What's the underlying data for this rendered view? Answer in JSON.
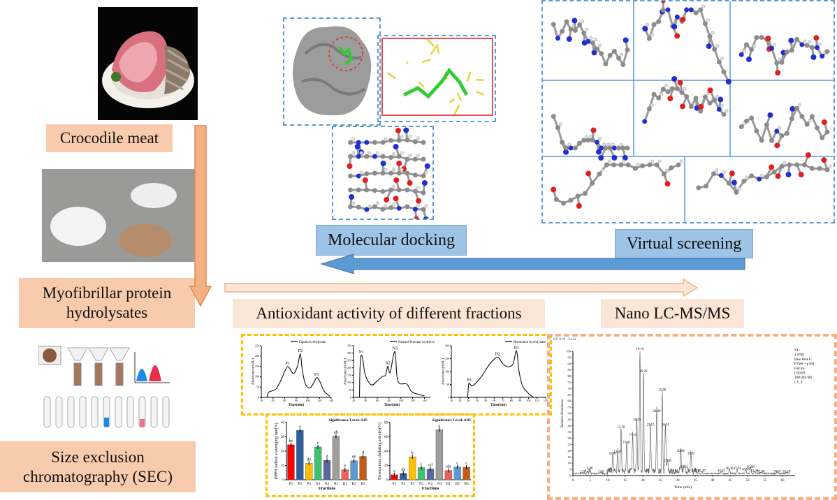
{
  "labels": {
    "crocodile_meat": "Crocodile meat",
    "myofibrillar": "Myofibrillar protein hydrolysates",
    "sec": "Size exclusion chromatography (SEC)",
    "molecular_docking": "Molecular docking",
    "virtual_screening": "Virtual screening",
    "antioxidant": "Antioxidant activity of different fractions",
    "nano_lc": "Nano LC-MS/MS"
  },
  "colors": {
    "label_bg": "#f8cbad",
    "blue_label_bg": "#9dc3e6",
    "arrow_blue": "#5b9bd5",
    "arrow_orange": "#f4b183",
    "chart_frame_yellow": "#ffc000",
    "chromatogram_frame": "#f4b183"
  },
  "chart_data": [
    {
      "type": "line",
      "legend": "Papain hydrolysate",
      "xlabel": "Time(min)",
      "ylabel": "Absorbance(mAU)",
      "xlim": [
        20,
        140
      ],
      "ylim": [
        0,
        250
      ],
      "xticks": [
        20,
        40,
        60,
        80,
        100,
        120,
        140
      ],
      "yticks": [
        0,
        50,
        100,
        150,
        200,
        250
      ],
      "points": [
        [
          30,
          0
        ],
        [
          33,
          25
        ],
        [
          45,
          40
        ],
        [
          55,
          90
        ],
        [
          65,
          148
        ],
        [
          75,
          115
        ],
        [
          82,
          150
        ],
        [
          87,
          210
        ],
        [
          90,
          140
        ],
        [
          95,
          70
        ],
        [
          102,
          45
        ],
        [
          108,
          60
        ],
        [
          115,
          95
        ],
        [
          120,
          80
        ],
        [
          128,
          30
        ],
        [
          138,
          5
        ]
      ],
      "peaks": [
        {
          "label": "P1",
          "x": 65,
          "y": 148
        },
        {
          "label": "P2",
          "x": 87,
          "y": 210
        },
        {
          "label": "P3",
          "x": 115,
          "y": 95
        }
      ]
    },
    {
      "type": "line",
      "legend": "Neutral Protease hydrolysate",
      "xlabel": "Time(min)",
      "ylabel": "Absorbance(mAU)",
      "xlim": [
        20,
        150
      ],
      "ylim": [
        0,
        350
      ],
      "xticks": [
        20,
        40,
        60,
        80,
        100,
        120,
        140
      ],
      "yticks": [
        0,
        50,
        100,
        150,
        200,
        250,
        300,
        350
      ],
      "points": [
        [
          30,
          0
        ],
        [
          31,
          200
        ],
        [
          33,
          285
        ],
        [
          36,
          250
        ],
        [
          40,
          150
        ],
        [
          50,
          85
        ],
        [
          60,
          110
        ],
        [
          68,
          140
        ],
        [
          74,
          150
        ],
        [
          78,
          210
        ],
        [
          82,
          170
        ],
        [
          90,
          310
        ],
        [
          95,
          110
        ],
        [
          110,
          90
        ],
        [
          118,
          40
        ],
        [
          130,
          20
        ],
        [
          140,
          10
        ]
      ],
      "peaks": [
        {
          "label": "N1",
          "x": 33,
          "y": 285
        },
        {
          "label": "N2",
          "x": 78,
          "y": 210
        },
        {
          "label": "N3",
          "x": 90,
          "y": 310
        }
      ]
    },
    {
      "type": "line",
      "legend": "Bromelain hydrolysate",
      "xlabel": "Time(min)",
      "ylabel": "Absorbance(mAU)",
      "xlim": [
        10,
        120
      ],
      "ylim": [
        0,
        200
      ],
      "xticks": [
        10,
        20,
        30,
        40,
        50,
        60,
        70,
        80,
        90,
        100,
        110,
        120
      ],
      "yticks": [
        0,
        50,
        100,
        150,
        200
      ],
      "points": [
        [
          29,
          0
        ],
        [
          30,
          45
        ],
        [
          31,
          55
        ],
        [
          35,
          45
        ],
        [
          45,
          80
        ],
        [
          55,
          130
        ],
        [
          64,
          155
        ],
        [
          70,
          130
        ],
        [
          76,
          118
        ],
        [
          82,
          130
        ],
        [
          86,
          180
        ],
        [
          89,
          100
        ],
        [
          93,
          45
        ],
        [
          100,
          15
        ],
        [
          106,
          0
        ]
      ],
      "peaks": [
        {
          "label": "B1",
          "x": 31,
          "y": 55
        },
        {
          "label": "B2",
          "x": 64,
          "y": 155
        },
        {
          "label": "B3",
          "x": 86,
          "y": 180
        }
      ]
    },
    {
      "type": "bar",
      "title": "Significance Level: 0.05",
      "xlabel": "Fractions",
      "ylabel": "DPPH radical scavenging rate(%)",
      "ylim": [
        0,
        40
      ],
      "yticks": [
        0,
        10,
        20,
        30,
        40
      ],
      "categories": [
        "P1",
        "P2",
        "P3",
        "N1",
        "N2",
        "N3",
        "B1",
        "B2",
        "B3"
      ],
      "values": [
        24.5,
        34.5,
        11.5,
        23,
        13.5,
        30.5,
        7,
        13.3,
        16.3
      ],
      "letters": [
        "bc",
        "a",
        "de",
        "c",
        "d",
        "ab",
        "e",
        "de",
        "d"
      ],
      "colors": [
        "#ff0000",
        "#2e5f9e",
        "#ffc000",
        "#3cc36b",
        "#5b65a0",
        "#a09e9a",
        "#f0605a",
        "#5b9bd5",
        "#c55a11"
      ]
    },
    {
      "type": "bar",
      "title": "Significance Level: 0.05",
      "xlabel": "Fractions",
      "ylabel": "Ferrous ions chelating activity(%)",
      "ylim": [
        0,
        80
      ],
      "yticks": [
        0,
        20,
        40,
        60,
        80
      ],
      "categories": [
        "P1",
        "P2",
        "P3",
        "N1",
        "N2",
        "N3",
        "B1",
        "B2",
        "B3"
      ],
      "values": [
        7,
        9,
        32,
        17,
        15,
        70,
        13,
        18,
        17.5
      ],
      "letters": [
        "e",
        "de",
        "b",
        "c",
        "cd",
        "a",
        "cde",
        "c",
        "c"
      ],
      "colors": [
        "#ff0000",
        "#2e5f9e",
        "#ffc000",
        "#3cc36b",
        "#5b65a0",
        "#a09e9a",
        "#f0605a",
        "#5b9bd5",
        "#c55a11"
      ]
    },
    {
      "type": "line",
      "header": "RT: 0.00 - 63.04",
      "info": [
        "NL:",
        "4.67E8",
        "Base Peak F:",
        "FTMS + p ESI",
        "Full ms",
        "[150.00-",
        "1800.00] MS",
        "CY_4"
      ],
      "xlabel": "Time (min)",
      "ylabel": "Relative Abundance",
      "xlim": [
        0,
        63
      ],
      "ylim": [
        0,
        100
      ],
      "xticks": [
        0,
        5,
        10,
        15,
        20,
        25,
        30,
        35,
        40,
        45,
        50,
        55,
        60
      ],
      "yticks": [
        0,
        5,
        10,
        15,
        20,
        25,
        30,
        35,
        40,
        45,
        50,
        55,
        60,
        65,
        70,
        75,
        80,
        85,
        90,
        95,
        100
      ],
      "peaks": [
        {
          "label": "2.78",
          "x": 2.78,
          "y": 1
        },
        {
          "label": "4.21",
          "x": 4.21,
          "y": 2
        },
        {
          "label": "4.86",
          "x": 4.86,
          "y": 4
        },
        {
          "label": "7.99",
          "x": 7.99,
          "y": 1
        },
        {
          "label": "10.61",
          "x": 10.61,
          "y": 1.5
        },
        {
          "label": "11.41",
          "x": 11.41,
          "y": 16
        },
        {
          "label": "13.47",
          "x": 12.8,
          "y": 17
        },
        {
          "label": "13.78",
          "x": 13.78,
          "y": 37
        },
        {
          "label": "15.41",
          "x": 15.41,
          "y": 25
        },
        {
          "label": "17.10",
          "x": 17.1,
          "y": 31
        },
        {
          "label": "18.29",
          "x": 18.29,
          "y": 43
        },
        {
          "label": "19.19",
          "x": 19.19,
          "y": 100
        },
        {
          "label": "19.29",
          "x": 20.2,
          "y": 82
        },
        {
          "label": "23.15",
          "x": 22.2,
          "y": 39
        },
        {
          "label": "24.00",
          "x": 24.0,
          "y": 50
        },
        {
          "label": "25.58",
          "x": 25.58,
          "y": 67
        },
        {
          "label": "26.91",
          "x": 26.5,
          "y": 39
        },
        {
          "label": "27.06",
          "x": 27.1,
          "y": 10
        },
        {
          "label": "30.88",
          "x": 30.88,
          "y": 18
        },
        {
          "label": "31.54",
          "x": 31.8,
          "y": 5
        },
        {
          "label": "33.02",
          "x": 33.8,
          "y": 16
        },
        {
          "label": "34.31",
          "x": 35.0,
          "y": 2
        },
        {
          "label": "35.97",
          "x": 37.0,
          "y": 2
        },
        {
          "label": "43.45",
          "x": 42.5,
          "y": 2
        },
        {
          "label": "46.36",
          "x": 44.8,
          "y": 4
        },
        {
          "label": "47.04",
          "x": 47.0,
          "y": 4
        },
        {
          "label": "49.09",
          "x": 49.5,
          "y": 3
        },
        {
          "label": "50.88",
          "x": 50.88,
          "y": 5
        },
        {
          "label": "51.26",
          "x": 52.0,
          "y": 2
        },
        {
          "label": "52.86",
          "x": 53.8,
          "y": 1.5
        },
        {
          "label": "58.97",
          "x": 58.5,
          "y": 1.5
        },
        {
          "label": "61.20",
          "x": 61.2,
          "y": 1.5
        }
      ]
    }
  ]
}
